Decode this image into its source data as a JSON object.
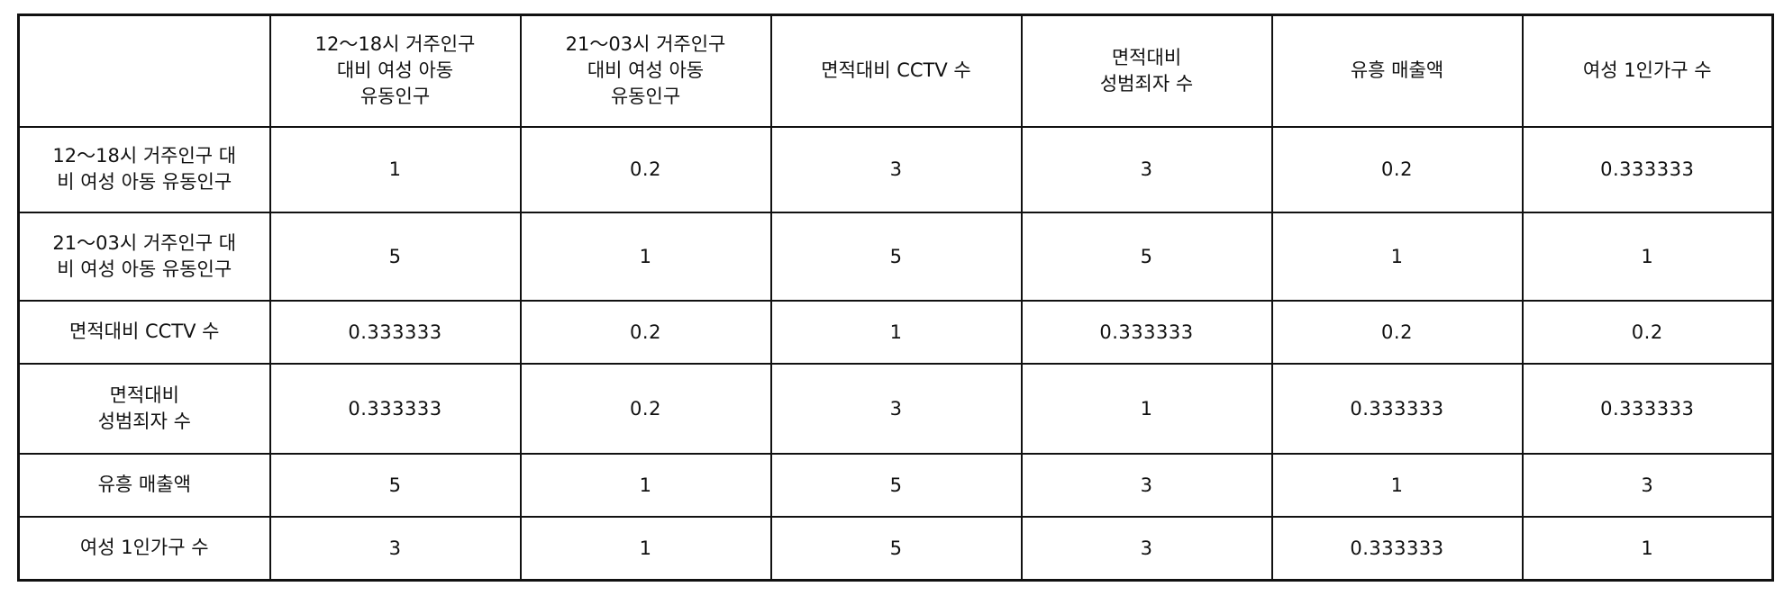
{
  "table": {
    "corner": "",
    "columns": [
      "12～18시 거주인구\n대비 여성 아동\n유동인구",
      "21～03시 거주인구\n대비 여성 아동\n유동인구",
      "면적대비 CCTV 수",
      "면적대비\n성범죄자 수",
      "유흥 매출액",
      "여성 1인가구 수"
    ],
    "rows": [
      {
        "label": "12～18시 거주인구 대\n비 여성 아동 유동인구",
        "values": [
          "1",
          "0.2",
          "3",
          "3",
          "0.2",
          "0.333333"
        ]
      },
      {
        "label": "21～03시 거주인구 대\n비 여성 아동 유동인구",
        "values": [
          "5",
          "1",
          "5",
          "5",
          "1",
          "1"
        ]
      },
      {
        "label": "면적대비 CCTV 수",
        "values": [
          "0.333333",
          "0.2",
          "1",
          "0.333333",
          "0.2",
          "0.2"
        ]
      },
      {
        "label": "면적대비\n성범죄자 수",
        "values": [
          "0.333333",
          "0.2",
          "3",
          "1",
          "0.333333",
          "0.333333"
        ]
      },
      {
        "label": "유흥 매출액",
        "values": [
          "5",
          "1",
          "5",
          "3",
          "1",
          "3"
        ]
      },
      {
        "label": "여성 1인가구 수",
        "values": [
          "3",
          "1",
          "5",
          "3",
          "0.333333",
          "1"
        ]
      }
    ]
  }
}
